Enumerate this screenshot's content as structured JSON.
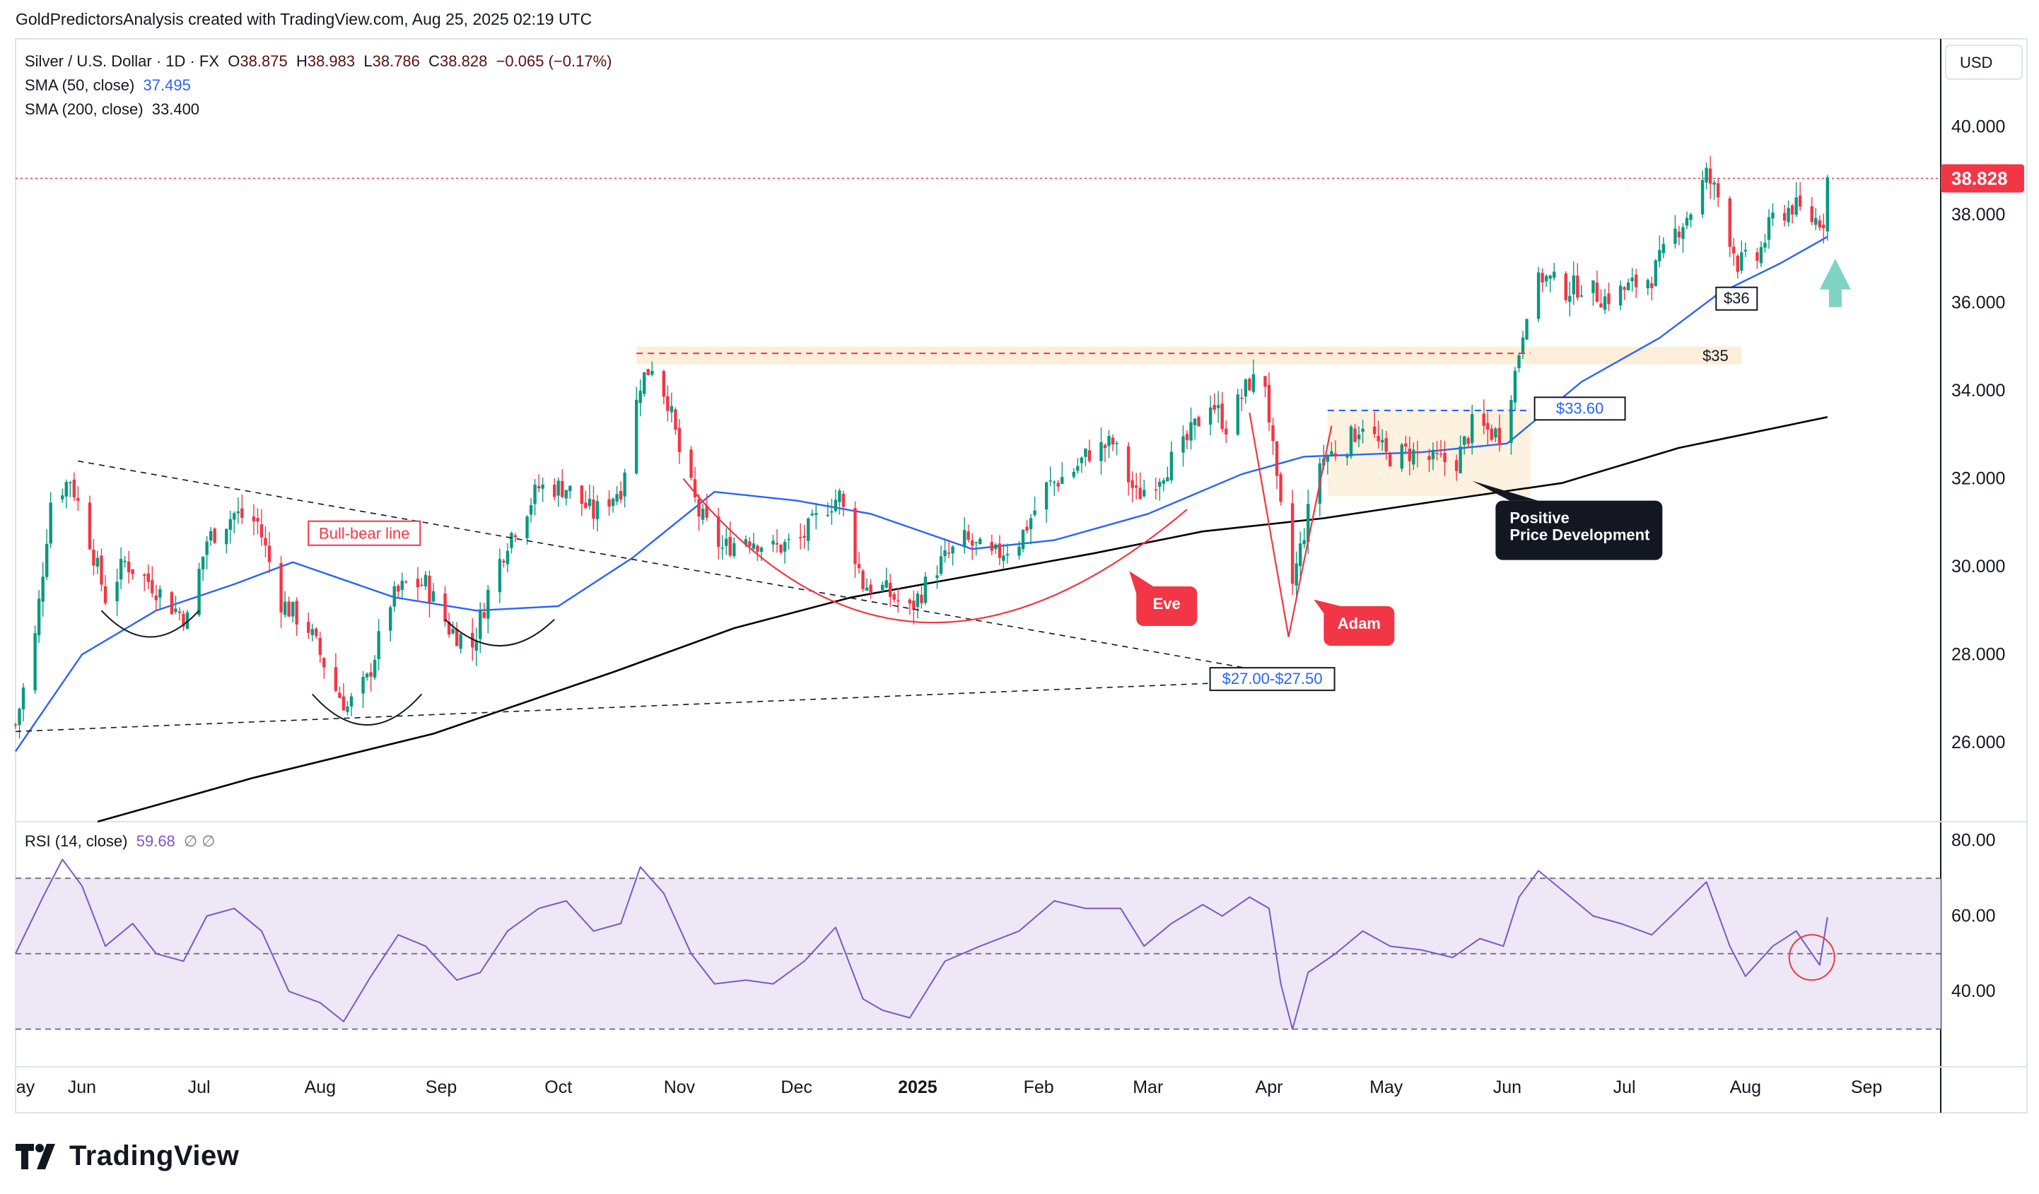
{
  "credit": "GoldPredictorsAnalysis created with TradingView.com, Aug 25, 2025 02:19 UTC",
  "legend": {
    "symbol": "Silver / U.S. Dollar · 1D · FX",
    "open_label": "O",
    "open": "38.875",
    "high_label": "H",
    "high": "38.983",
    "low_label": "L",
    "low": "38.786",
    "close_label": "C",
    "close": "38.828",
    "change": "−0.065 (−0.17%)",
    "sma50_label": "SMA (50, close)",
    "sma50_value": "37.495",
    "sma200_label": "SMA (200, close)",
    "sma200_value": "33.400"
  },
  "rsi_legend": {
    "label": "RSI (14, close)",
    "value": "59.68",
    "extra": "∅ ∅"
  },
  "currency_button": "USD",
  "price_badge": "38.828",
  "logo_text": "TradingView",
  "colors": {
    "up": "#089981",
    "down": "#f23645",
    "sma50": "#2962ff",
    "sma200": "#000000",
    "rsi": "#7e57c2",
    "rsi_band": "#ede7f6",
    "annotation_red": "#f23645",
    "annotation_dark": "#131722",
    "arrow": "#7fd3c3"
  },
  "chart_data": {
    "type": "candlestick",
    "title": "Silver / U.S. Dollar · 1D · FX",
    "y_axis": {
      "ticks": [
        "26.000",
        "28.000",
        "30.000",
        "32.000",
        "34.000",
        "36.000",
        "38.000",
        "40.000"
      ],
      "ylim": [
        24.2,
        42.0
      ]
    },
    "x_axis": {
      "ticks": [
        "ay",
        "Jun",
        "Jul",
        "Aug",
        "Sep",
        "Oct",
        "Nov",
        "Dec",
        "2025",
        "Feb",
        "Mar",
        "Apr",
        "May",
        "Jun",
        "Jul",
        "Aug",
        "Sep"
      ],
      "range": [
        "2024-05-15",
        "2025-09-20"
      ]
    },
    "last_price": 38.828,
    "price_path": [
      [
        "2024-05-15",
        26.4
      ],
      [
        "2024-05-20",
        28.4
      ],
      [
        "2024-05-24",
        31.5
      ],
      [
        "2024-05-29",
        32.0
      ],
      [
        "2024-06-03",
        30.6
      ],
      [
        "2024-06-07",
        29.3
      ],
      [
        "2024-06-12",
        30.1
      ],
      [
        "2024-06-19",
        29.6
      ],
      [
        "2024-06-24",
        29.1
      ],
      [
        "2024-06-28",
        28.8
      ],
      [
        "2024-07-03",
        30.6
      ],
      [
        "2024-07-10",
        31.2
      ],
      [
        "2024-07-16",
        31.0
      ],
      [
        "2024-07-22",
        29.2
      ],
      [
        "2024-07-29",
        28.6
      ],
      [
        "2024-08-05",
        27.2
      ],
      [
        "2024-08-08",
        26.8
      ],
      [
        "2024-08-13",
        27.4
      ],
      [
        "2024-08-19",
        29.2
      ],
      [
        "2024-08-23",
        29.6
      ],
      [
        "2024-08-28",
        29.6
      ],
      [
        "2024-09-03",
        28.6
      ],
      [
        "2024-09-09",
        28.2
      ],
      [
        "2024-09-13",
        29.4
      ],
      [
        "2024-09-18",
        30.6
      ],
      [
        "2024-09-26",
        31.8
      ],
      [
        "2024-10-03",
        31.8
      ],
      [
        "2024-10-10",
        31.2
      ],
      [
        "2024-10-17",
        31.8
      ],
      [
        "2024-10-22",
        34.2
      ],
      [
        "2024-10-25",
        34.6
      ],
      [
        "2024-10-29",
        33.8
      ],
      [
        "2024-11-01",
        32.6
      ],
      [
        "2024-11-06",
        31.2
      ],
      [
        "2024-11-12",
        30.4
      ],
      [
        "2024-11-18",
        30.7
      ],
      [
        "2024-11-25",
        30.4
      ],
      [
        "2024-12-02",
        30.6
      ],
      [
        "2024-12-09",
        31.4
      ],
      [
        "2024-12-12",
        31.6
      ],
      [
        "2024-12-18",
        29.6
      ],
      [
        "2024-12-23",
        29.5
      ],
      [
        "2024-12-30",
        29.0
      ],
      [
        "2025-01-06",
        30.0
      ],
      [
        "2025-01-13",
        30.6
      ],
      [
        "2025-01-20",
        30.2
      ],
      [
        "2025-01-27",
        30.6
      ],
      [
        "2025-02-03",
        31.8
      ],
      [
        "2025-02-10",
        32.2
      ],
      [
        "2025-02-14",
        32.6
      ],
      [
        "2025-02-20",
        32.8
      ],
      [
        "2025-02-26",
        31.6
      ],
      [
        "2025-03-04",
        32.1
      ],
      [
        "2025-03-10",
        32.7
      ],
      [
        "2025-03-17",
        33.8
      ],
      [
        "2025-03-21",
        33.2
      ],
      [
        "2025-03-27",
        34.2
      ],
      [
        "2025-03-31",
        34.2
      ],
      [
        "2025-04-03",
        31.8
      ],
      [
        "2025-04-07",
        29.6
      ],
      [
        "2025-04-10",
        30.8
      ],
      [
        "2025-04-14",
        32.4
      ],
      [
        "2025-04-21",
        32.8
      ],
      [
        "2025-04-25",
        33.3
      ],
      [
        "2025-05-01",
        32.5
      ],
      [
        "2025-05-07",
        32.6
      ],
      [
        "2025-05-13",
        32.4
      ],
      [
        "2025-05-19",
        32.4
      ],
      [
        "2025-05-23",
        33.2
      ],
      [
        "2025-05-30",
        33.0
      ],
      [
        "2025-06-03",
        34.4
      ],
      [
        "2025-06-06",
        35.9
      ],
      [
        "2025-06-10",
        36.6
      ],
      [
        "2025-06-16",
        36.3
      ],
      [
        "2025-06-20",
        36.4
      ],
      [
        "2025-06-26",
        36.1
      ],
      [
        "2025-07-01",
        36.3
      ],
      [
        "2025-07-08",
        36.6
      ],
      [
        "2025-07-14",
        37.6
      ],
      [
        "2025-07-18",
        38.1
      ],
      [
        "2025-07-22",
        38.9
      ],
      [
        "2025-07-25",
        38.4
      ],
      [
        "2025-07-30",
        36.9
      ],
      [
        "2025-08-04",
        37.0
      ],
      [
        "2025-08-08",
        37.9
      ],
      [
        "2025-08-13",
        38.2
      ],
      [
        "2025-08-18",
        37.9
      ],
      [
        "2025-08-21",
        37.9
      ],
      [
        "2025-08-22",
        38.83
      ]
    ],
    "sma50_path": [
      [
        "2024-05-15",
        25.8
      ],
      [
        "2024-06-01",
        28.0
      ],
      [
        "2024-06-20",
        29.0
      ],
      [
        "2024-07-10",
        29.6
      ],
      [
        "2024-07-25",
        30.1
      ],
      [
        "2024-08-20",
        29.3
      ],
      [
        "2024-09-10",
        29.0
      ],
      [
        "2024-10-01",
        29.1
      ],
      [
        "2024-10-20",
        30.2
      ],
      [
        "2024-11-10",
        31.7
      ],
      [
        "2024-12-01",
        31.5
      ],
      [
        "2024-12-20",
        31.2
      ],
      [
        "2025-01-15",
        30.4
      ],
      [
        "2025-02-05",
        30.6
      ],
      [
        "2025-03-01",
        31.2
      ],
      [
        "2025-03-25",
        32.1
      ],
      [
        "2025-04-10",
        32.5
      ],
      [
        "2025-05-10",
        32.6
      ],
      [
        "2025-06-01",
        32.8
      ],
      [
        "2025-06-20",
        34.2
      ],
      [
        "2025-07-10",
        35.2
      ],
      [
        "2025-07-25",
        36.2
      ],
      [
        "2025-08-10",
        36.9
      ],
      [
        "2025-08-22",
        37.5
      ]
    ],
    "sma200_path": [
      [
        "2024-06-05",
        24.2
      ],
      [
        "2024-07-15",
        25.2
      ],
      [
        "2024-08-30",
        26.2
      ],
      [
        "2024-10-15",
        27.6
      ],
      [
        "2024-11-15",
        28.6
      ],
      [
        "2024-12-15",
        29.3
      ],
      [
        "2025-01-15",
        29.8
      ],
      [
        "2025-02-15",
        30.3
      ],
      [
        "2025-03-15",
        30.8
      ],
      [
        "2025-04-15",
        31.1
      ],
      [
        "2025-05-15",
        31.5
      ],
      [
        "2025-06-15",
        31.9
      ],
      [
        "2025-07-15",
        32.7
      ],
      [
        "2025-08-22",
        33.4
      ]
    ],
    "rsi": {
      "ylim": [
        20,
        85
      ],
      "ticks": [
        "40.00",
        "60.00",
        "80.00"
      ],
      "bands": [
        30,
        50,
        70
      ],
      "value": 59.68,
      "path": [
        [
          "2024-05-15",
          50
        ],
        [
          "2024-05-22",
          65
        ],
        [
          "2024-05-27",
          75
        ],
        [
          "2024-06-01",
          68
        ],
        [
          "2024-06-07",
          52
        ],
        [
          "2024-06-14",
          58
        ],
        [
          "2024-06-20",
          50
        ],
        [
          "2024-06-27",
          48
        ],
        [
          "2024-07-03",
          60
        ],
        [
          "2024-07-10",
          62
        ],
        [
          "2024-07-17",
          56
        ],
        [
          "2024-07-24",
          40
        ],
        [
          "2024-08-01",
          37
        ],
        [
          "2024-08-07",
          32
        ],
        [
          "2024-08-14",
          44
        ],
        [
          "2024-08-21",
          55
        ],
        [
          "2024-08-28",
          52
        ],
        [
          "2024-09-05",
          43
        ],
        [
          "2024-09-11",
          45
        ],
        [
          "2024-09-18",
          56
        ],
        [
          "2024-09-26",
          62
        ],
        [
          "2024-10-03",
          64
        ],
        [
          "2024-10-10",
          56
        ],
        [
          "2024-10-17",
          58
        ],
        [
          "2024-10-22",
          73
        ],
        [
          "2024-10-28",
          66
        ],
        [
          "2024-11-04",
          50
        ],
        [
          "2024-11-10",
          42
        ],
        [
          "2024-11-18",
          43
        ],
        [
          "2024-11-25",
          42
        ],
        [
          "2024-12-03",
          48
        ],
        [
          "2024-12-11",
          57
        ],
        [
          "2024-12-18",
          38
        ],
        [
          "2024-12-23",
          35
        ],
        [
          "2024-12-30",
          33
        ],
        [
          "2025-01-08",
          48
        ],
        [
          "2025-01-17",
          52
        ],
        [
          "2025-01-27",
          56
        ],
        [
          "2025-02-05",
          64
        ],
        [
          "2025-02-13",
          62
        ],
        [
          "2025-02-22",
          62
        ],
        [
          "2025-02-28",
          52
        ],
        [
          "2025-03-07",
          58
        ],
        [
          "2025-03-15",
          63
        ],
        [
          "2025-03-20",
          60
        ],
        [
          "2025-03-27",
          65
        ],
        [
          "2025-04-01",
          62
        ],
        [
          "2025-04-04",
          42
        ],
        [
          "2025-04-07",
          30
        ],
        [
          "2025-04-11",
          45
        ],
        [
          "2025-04-18",
          50
        ],
        [
          "2025-04-25",
          56
        ],
        [
          "2025-05-02",
          52
        ],
        [
          "2025-05-10",
          51
        ],
        [
          "2025-05-18",
          49
        ],
        [
          "2025-05-25",
          54
        ],
        [
          "2025-05-31",
          52
        ],
        [
          "2025-06-04",
          65
        ],
        [
          "2025-06-09",
          72
        ],
        [
          "2025-06-16",
          66
        ],
        [
          "2025-06-23",
          60
        ],
        [
          "2025-06-30",
          58
        ],
        [
          "2025-07-08",
          55
        ],
        [
          "2025-07-15",
          62
        ],
        [
          "2025-07-22",
          69
        ],
        [
          "2025-07-28",
          52
        ],
        [
          "2025-08-01",
          44
        ],
        [
          "2025-08-08",
          52
        ],
        [
          "2025-08-14",
          56
        ],
        [
          "2025-08-20",
          47
        ],
        [
          "2025-08-22",
          59.68
        ]
      ]
    },
    "annotations": {
      "bull_bear": "Bull-bear line",
      "eve": "Eve",
      "adam": "Adam",
      "positive_1": "Positive",
      "positive_2": "Price Development",
      "level_35": "$35",
      "level_3360": "$33.60",
      "level_36": "$36",
      "level_27": "$27.00-$27.50"
    }
  }
}
